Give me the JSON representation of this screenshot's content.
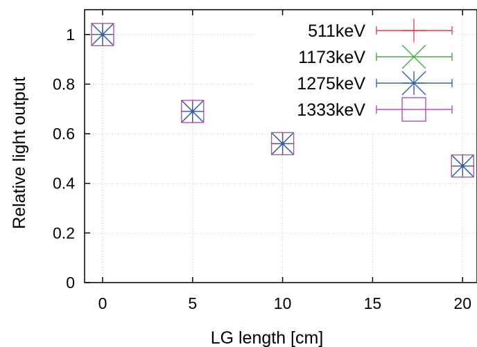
{
  "chart_data": {
    "type": "scatter",
    "xlabel": "LG length [cm]",
    "ylabel": "Relative light output",
    "xlim": [
      -1,
      20.8
    ],
    "ylim": [
      0,
      1.1
    ],
    "x_ticks": [
      "0",
      "5",
      "10",
      "15",
      "20"
    ],
    "y_ticks": [
      "0",
      "0.2",
      "0.4",
      "0.6",
      "0.8",
      "1"
    ],
    "grid": true,
    "legend_position": "top-right",
    "series": [
      {
        "name": "511keV",
        "marker": "plus",
        "color": "#e04050",
        "x": [
          0,
          5,
          10,
          20
        ],
        "y": [
          1.0,
          0.69,
          0.56,
          0.47
        ]
      },
      {
        "name": "1173keV",
        "marker": "cross",
        "color": "#40b040",
        "x": [
          0,
          5,
          10,
          20
        ],
        "y": [
          1.0,
          0.69,
          0.56,
          0.47
        ]
      },
      {
        "name": "1275keV",
        "marker": "star",
        "color": "#3060b0",
        "x": [
          0,
          5,
          10,
          20
        ],
        "y": [
          1.0,
          0.69,
          0.56,
          0.47
        ]
      },
      {
        "name": "1333keV",
        "marker": "square",
        "color": "#b050b0",
        "x": [
          0,
          5,
          10,
          20
        ],
        "y": [
          1.0,
          0.69,
          0.56,
          0.47
        ]
      }
    ]
  }
}
